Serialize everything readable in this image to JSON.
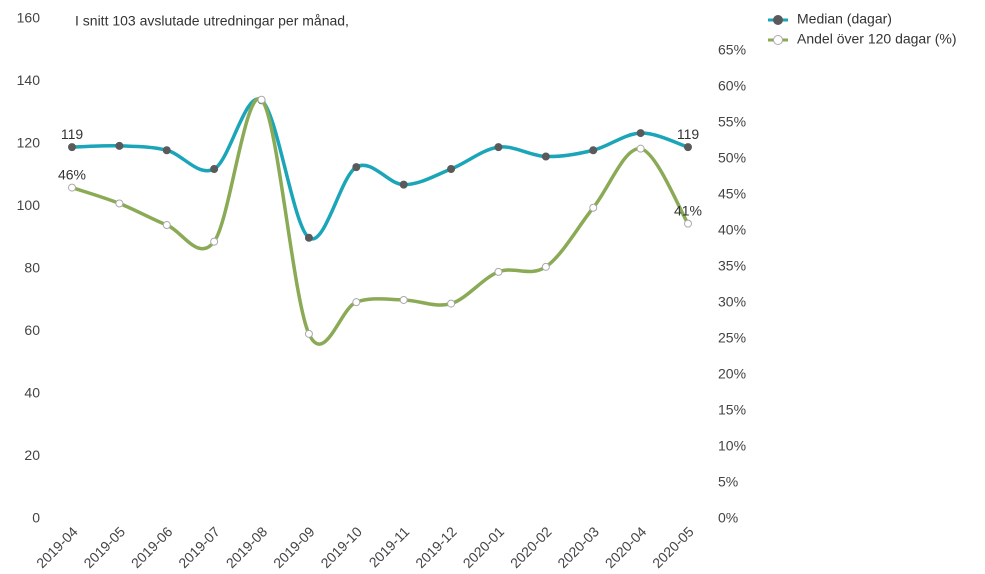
{
  "chart_data": {
    "type": "line",
    "title": "I snitt 103 avslutade utredningar per månad,",
    "categories": [
      "2019-04",
      "2019-05",
      "2019-06",
      "2019-07",
      "2019-08",
      "2019-09",
      "2019-10",
      "2019-11",
      "2019-12",
      "2020-01",
      "2020-02",
      "2020-03",
      "2020-04",
      "2020-05"
    ],
    "series": [
      {
        "name": "Median (dagar)",
        "color": "#1aa5b8",
        "marker_color": "#5a5a5a",
        "axis": "y",
        "values": [
          119,
          119.4,
          118,
          112,
          134,
          90,
          112.6,
          107,
          112,
          119,
          116,
          118,
          123.5,
          119
        ],
        "value_labels": [
          "119",
          null,
          null,
          null,
          null,
          null,
          null,
          null,
          null,
          null,
          null,
          null,
          null,
          "119"
        ]
      },
      {
        "name": "Andel över 120 dagar (%)",
        "color": "#8aaa55",
        "marker_color": "#ffffff",
        "axis": "y2",
        "values": [
          46,
          43.8,
          40.8,
          38.5,
          58.2,
          25.7,
          30.1,
          30.4,
          29.9,
          34.3,
          35,
          43.2,
          51.4,
          41
        ],
        "value_labels": [
          "46%",
          null,
          null,
          null,
          null,
          null,
          null,
          null,
          null,
          null,
          null,
          null,
          null,
          "41%"
        ]
      }
    ],
    "ylim": [
      0,
      160
    ],
    "yticks": [
      0,
      20,
      40,
      60,
      80,
      100,
      120,
      140,
      160
    ],
    "y2lim": [
      0,
      69.4
    ],
    "y2ticks": [
      {
        "value": 0,
        "label": "0%"
      },
      {
        "value": 5,
        "label": "5%"
      },
      {
        "value": 10,
        "label": "10%"
      },
      {
        "value": 15,
        "label": "15%"
      },
      {
        "value": 20,
        "label": "20%"
      },
      {
        "value": 25,
        "label": "25%"
      },
      {
        "value": 30,
        "label": "30%"
      },
      {
        "value": 35,
        "label": "35%"
      },
      {
        "value": 40,
        "label": "40%"
      },
      {
        "value": 45,
        "label": "45%"
      },
      {
        "value": 50,
        "label": "50%"
      },
      {
        "value": 55,
        "label": "55%"
      },
      {
        "value": 60,
        "label": "60%"
      },
      {
        "value": 65,
        "label": "65%"
      }
    ],
    "legend": "top-right",
    "smooth": true
  }
}
